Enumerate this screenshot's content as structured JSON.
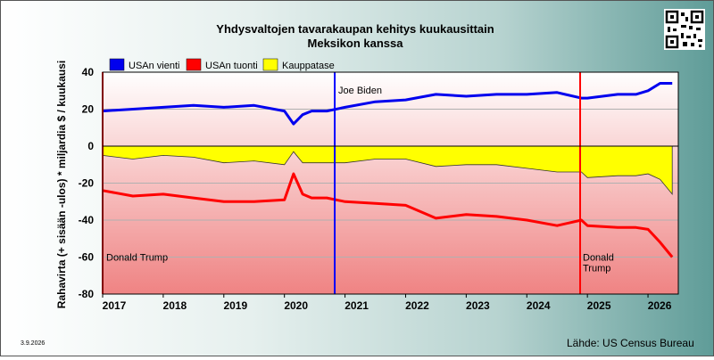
{
  "chart_data": {
    "type": "line",
    "title": "Yhdysvaltojen tavarakaupan kehitys kuukausittain",
    "subtitle": "Meksikon kanssa",
    "ylabel": "Rahavirta (+ sisään -ulos)  *  miljardia $ / kuukausi",
    "ylim": [
      -80,
      40
    ],
    "xlim": [
      2017.0,
      2026.5
    ],
    "grid": true,
    "legend_position": "top-left",
    "y_ticks": [
      40,
      20,
      0,
      -20,
      -40,
      -60,
      -80
    ],
    "x_ticks": [
      {
        "value": 2017,
        "label": "2017"
      },
      {
        "value": 2018,
        "label": "2018"
      },
      {
        "value": 2019,
        "label": "2019"
      },
      {
        "value": 2020,
        "label": "2020"
      },
      {
        "value": 2021,
        "label": "2021"
      },
      {
        "value": 2022,
        "label": "2022"
      },
      {
        "value": 2023,
        "label": "2023"
      },
      {
        "value": 2024,
        "label": "2024"
      },
      {
        "value": 2025,
        "label": "2025"
      },
      {
        "value": 2026,
        "label": "2026"
      }
    ],
    "x": [
      2017.0,
      2017.5,
      2018.0,
      2018.5,
      2019.0,
      2019.5,
      2020.0,
      2020.15,
      2020.3,
      2020.45,
      2020.7,
      2021.0,
      2021.5,
      2022.0,
      2022.5,
      2023.0,
      2023.5,
      2024.0,
      2024.5,
      2024.9,
      2025.0,
      2025.5,
      2025.8,
      2026.0,
      2026.2,
      2026.4
    ],
    "series": [
      {
        "name": "USAn vienti",
        "color": "#0000ee",
        "type": "line",
        "values": [
          19,
          20,
          21,
          22,
          21,
          22,
          19,
          12,
          17,
          19,
          19,
          21,
          24,
          25,
          28,
          27,
          28,
          28,
          29,
          26,
          26,
          28,
          28,
          30,
          34,
          34
        ]
      },
      {
        "name": "USAn tuonti",
        "color": "#ff0000",
        "type": "line",
        "values": [
          -24,
          -27,
          -26,
          -28,
          -30,
          -30,
          -29,
          -15,
          -26,
          -28,
          -28,
          -30,
          -31,
          -32,
          -39,
          -37,
          -38,
          -40,
          -43,
          -40,
          -43,
          -44,
          -44,
          -45,
          -52,
          -60
        ]
      },
      {
        "name": "Kauppatase",
        "color": "#ffff00",
        "type": "area",
        "values": [
          -5,
          -7,
          -5,
          -6,
          -9,
          -8,
          -10,
          -3,
          -9,
          -9,
          -9,
          -9,
          -7,
          -7,
          -11,
          -10,
          -10,
          -12,
          -14,
          -14,
          -17,
          -16,
          -16,
          -15,
          -18,
          -26
        ]
      }
    ],
    "events": [
      {
        "x": 2017.0,
        "label": "Donald Trump",
        "color": "#ff0000"
      },
      {
        "x": 2020.83,
        "label": "Joe Biden",
        "color": "#0000ff"
      },
      {
        "x": 2024.88,
        "label": "Donald Trump",
        "color": "#ff0000"
      }
    ]
  },
  "footer": {
    "date": "3.9.2026",
    "source": "Lähde: US Census Bureau"
  }
}
